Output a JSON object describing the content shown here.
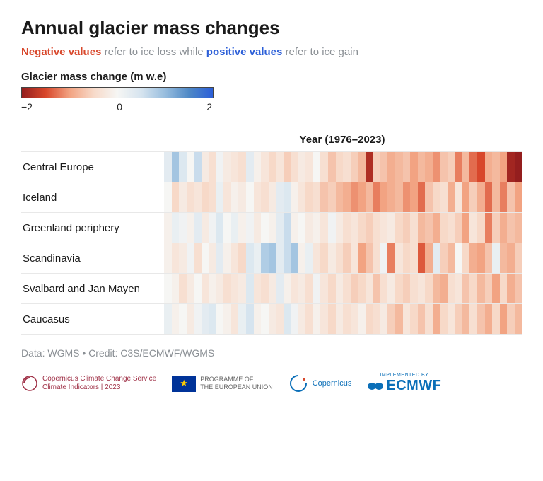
{
  "title": "Annual glacier mass changes",
  "subtitle": {
    "neg": "Negative values",
    "mid1": " refer to ice loss while ",
    "pos": "positive values",
    "mid2": " refer to ice gain"
  },
  "legend": {
    "title": "Glacier mass change (m w.e)",
    "min": "−2",
    "mid": "0",
    "max": "2",
    "gradient_stops": [
      "#941e1e",
      "#d8472b",
      "#f2a382",
      "#f7d9c8",
      "#f6f6f4",
      "#d6e4ef",
      "#97bdde",
      "#4f89c6",
      "#2c5fd8"
    ]
  },
  "year_label": "Year (1976–2023)",
  "year_range": [
    1976,
    2023
  ],
  "value_scale": [
    -2,
    2
  ],
  "credit": "Data: WGMS • Credit: C3S/ECMWF/WGMS",
  "footer": {
    "copernicus_line1": "Copernicus Climate Change Service",
    "copernicus_line2": "Climate Indicators | 2023",
    "eu_line1": "PROGRAMME OF",
    "eu_line2": "THE EUROPEAN UNION",
    "copernicus2": "Copernicus",
    "impl": "IMPLEMENTED BY",
    "ecmwf": "ECMWF"
  },
  "regions": [
    {
      "label": "Central Europe",
      "values": [
        0.3,
        0.9,
        0.4,
        0.0,
        0.6,
        -0.2,
        -0.4,
        0.1,
        -0.2,
        -0.3,
        -0.4,
        0.3,
        -0.1,
        -0.3,
        -0.5,
        -0.3,
        -0.6,
        -0.4,
        -0.2,
        -0.3,
        0.0,
        -0.4,
        -0.7,
        -0.5,
        -0.4,
        -0.6,
        -0.8,
        -1.8,
        -0.6,
        -0.7,
        -0.9,
        -0.8,
        -0.7,
        -1.0,
        -0.8,
        -0.9,
        -1.1,
        -0.7,
        -0.6,
        -1.2,
        -0.8,
        -1.3,
        -1.5,
        -0.9,
        -0.8,
        -1.0,
        -1.9,
        -2.0
      ]
    },
    {
      "label": "Iceland",
      "values": [
        0.0,
        -0.5,
        -0.2,
        -0.4,
        -0.3,
        -0.5,
        -0.4,
        0.2,
        -0.3,
        -0.1,
        -0.2,
        0.0,
        -0.3,
        -0.4,
        -0.2,
        0.3,
        0.4,
        -0.1,
        -0.3,
        -0.5,
        -0.4,
        -0.7,
        -0.6,
        -0.8,
        -0.9,
        -1.1,
        -1.0,
        -0.8,
        -1.2,
        -1.0,
        -0.9,
        -0.8,
        -1.1,
        -1.0,
        -1.3,
        -0.7,
        -0.5,
        -0.4,
        -0.9,
        -0.3,
        -1.0,
        -0.6,
        -0.9,
        -1.3,
        -0.8,
        -1.2,
        -0.7,
        -1.0
      ]
    },
    {
      "label": "Greenland periphery",
      "values": [
        -0.1,
        0.2,
        0.1,
        -0.1,
        0.3,
        -0.2,
        0.1,
        0.4,
        0.0,
        0.2,
        -0.1,
        0.1,
        -0.2,
        0.0,
        -0.1,
        0.3,
        0.6,
        -0.1,
        0.0,
        -0.2,
        -0.1,
        -0.3,
        0.1,
        -0.2,
        -0.4,
        -0.3,
        -0.5,
        -0.6,
        -0.4,
        -0.3,
        -0.2,
        -0.5,
        -0.6,
        -0.4,
        -0.8,
        -0.7,
        -0.9,
        -0.5,
        -0.4,
        -0.6,
        -1.0,
        -0.3,
        -0.5,
        -1.2,
        -0.6,
        -0.9,
        -0.7,
        -0.8
      ]
    },
    {
      "label": "Scandinavia",
      "values": [
        -0.1,
        -0.3,
        -0.2,
        0.1,
        -0.4,
        0.0,
        -0.2,
        0.3,
        -0.1,
        -0.3,
        -0.5,
        0.4,
        0.2,
        0.8,
        0.9,
        0.3,
        0.6,
        0.9,
        -0.1,
        0.2,
        -0.3,
        -0.5,
        -0.2,
        -0.4,
        -0.6,
        -0.3,
        -1.0,
        -0.7,
        -0.4,
        0.1,
        -1.2,
        -0.3,
        -0.5,
        -0.4,
        -1.4,
        -0.9,
        0.3,
        -0.6,
        -0.8,
        0.0,
        -0.5,
        -0.9,
        -1.0,
        -0.7,
        0.2,
        -0.8,
        -0.9,
        -0.6
      ]
    },
    {
      "label": "Svalbard and Jan Mayen",
      "values": [
        0.0,
        -0.1,
        -0.4,
        -0.2,
        0.0,
        -0.3,
        -0.1,
        -0.2,
        -0.4,
        -0.3,
        -0.2,
        0.4,
        -0.3,
        -0.4,
        -0.2,
        0.3,
        -0.1,
        -0.3,
        -0.2,
        -0.4,
        0.1,
        -0.3,
        -0.5,
        -0.2,
        -0.4,
        -0.6,
        -0.5,
        -0.3,
        -0.7,
        -0.4,
        -0.2,
        -0.5,
        -0.6,
        -0.4,
        -0.3,
        -0.5,
        -0.8,
        -0.9,
        -0.4,
        -0.3,
        -0.7,
        -0.5,
        -0.8,
        -0.6,
        -1.0,
        -0.5,
        -0.9,
        -0.7
      ]
    },
    {
      "label": "Caucasus",
      "values": [
        0.2,
        -0.1,
        0.0,
        -0.2,
        0.1,
        0.3,
        0.4,
        0.0,
        -0.1,
        -0.3,
        0.2,
        0.5,
        -0.1,
        0.0,
        -0.2,
        -0.3,
        0.4,
        0.1,
        -0.2,
        -0.4,
        -0.1,
        -0.3,
        -0.5,
        -0.2,
        -0.4,
        -0.3,
        -0.1,
        -0.5,
        -0.4,
        -0.2,
        -0.6,
        -0.8,
        -0.3,
        -0.5,
        -0.7,
        -0.4,
        -0.9,
        -0.5,
        -0.3,
        -0.6,
        -0.8,
        -0.4,
        -0.7,
        -0.9,
        -0.5,
        -1.0,
        -0.6,
        -0.8
      ]
    }
  ]
}
